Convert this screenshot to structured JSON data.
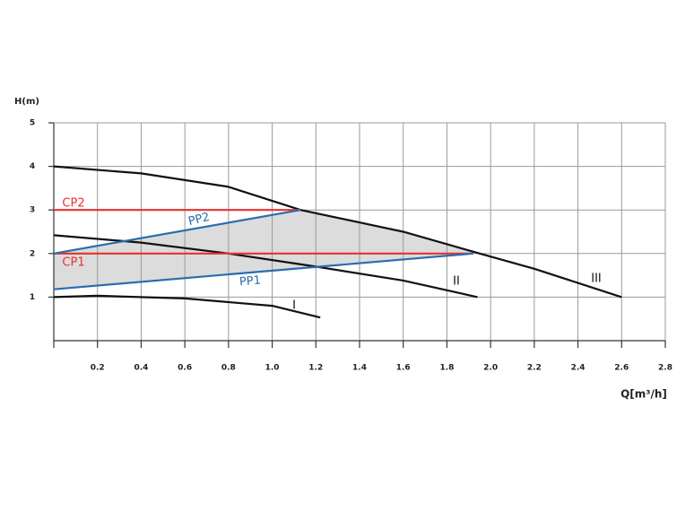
{
  "chart_data": {
    "type": "line",
    "x_label": "Q[m³/h]",
    "y_label": "H(m)",
    "xlim": [
      0,
      2.8
    ],
    "ylim": [
      0,
      5
    ],
    "xticks": [
      0.2,
      0.4,
      0.6,
      0.8,
      {
        "value": 1,
        "label": "1.0"
      },
      1.2,
      1.4,
      1.6,
      1.8,
      {
        "value": 2,
        "label": "2.0"
      },
      2.2,
      2.4,
      2.6,
      2.8
    ],
    "yticks": [
      1,
      2,
      3,
      4,
      5
    ],
    "grid": true,
    "series": [
      {
        "name": "III",
        "color": "#111111",
        "x": [
          0,
          0.4,
          0.8,
          1.13,
          1.6,
          1.95,
          2.2,
          2.6
        ],
        "values": [
          4.0,
          3.84,
          3.53,
          3.0,
          2.5,
          2.0,
          1.65,
          1.0
        ]
      },
      {
        "name": "II",
        "color": "#111111",
        "x": [
          0,
          0.4,
          0.8,
          1.2,
          1.6,
          1.94
        ],
        "values": [
          2.42,
          2.25,
          2.0,
          1.7,
          1.38,
          1.0
        ]
      },
      {
        "name": "I",
        "color": "#111111",
        "x": [
          0,
          0.2,
          0.6,
          1.0,
          1.22
        ],
        "values": [
          1.0,
          1.03,
          0.97,
          0.8,
          0.53
        ]
      },
      {
        "name": "CP2",
        "color": "#e8312f",
        "x": [
          0,
          1.13
        ],
        "values": [
          3.0,
          3.0
        ]
      },
      {
        "name": "CP1",
        "color": "#e8312f",
        "x": [
          0,
          1.92
        ],
        "values": [
          2.0,
          2.0
        ]
      },
      {
        "name": "PP2",
        "color": "#2a6db0",
        "x": [
          0,
          1.13
        ],
        "values": [
          2.0,
          3.0
        ]
      },
      {
        "name": "PP1",
        "color": "#2a6db0",
        "x": [
          0,
          1.92
        ],
        "values": [
          1.18,
          2.0
        ]
      }
    ]
  }
}
